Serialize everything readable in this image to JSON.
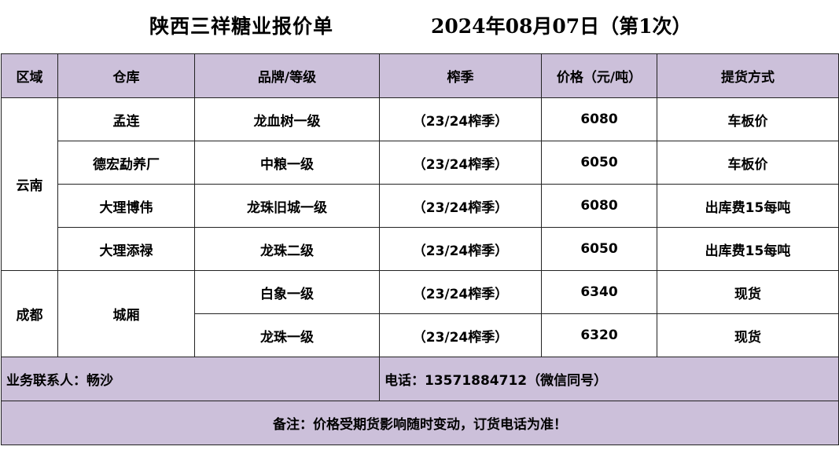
{
  "title": {
    "main": "陕西三祥糖业报价单",
    "date": "2024年08月07日（第1次）"
  },
  "headers": [
    "区域",
    "仓库",
    "品牌/等级",
    "榨季",
    "价格（元/吨）",
    "提货方式"
  ],
  "regions": {
    "yunnan": "云南",
    "chengdu": "成都"
  },
  "rows": [
    {
      "warehouse": "孟连",
      "brand": "龙血树一级",
      "season": "（23/24榨季）",
      "price": "6080",
      "delivery": "车板价"
    },
    {
      "warehouse": "德宏勐养厂",
      "brand": "中粮一级",
      "season": "（23/24榨季）",
      "price": "6050",
      "delivery": "车板价"
    },
    {
      "warehouse": "大理博伟",
      "brand": "龙珠旧城一级",
      "season": "（23/24榨季）",
      "price": "6080",
      "delivery": "出库费15每吨"
    },
    {
      "warehouse": "大理添禄",
      "brand": "龙珠二级",
      "season": "（23/24榨季）",
      "price": "6050",
      "delivery": "出库费15每吨"
    },
    {
      "warehouse": "城厢",
      "brand": "白象一级",
      "season": "（23/24榨季）",
      "price": "6340",
      "delivery": "现货"
    },
    {
      "warehouse": "",
      "brand": "龙珠一级",
      "season": "（23/24榨季）",
      "price": "6320",
      "delivery": "现货"
    }
  ],
  "contact": {
    "person": "业务联系人：畅沙",
    "phone": "电话：13571884712（微信同号）"
  },
  "note": "备注：价格受期货影响随时变动，订货电话为准！",
  "colors": {
    "header_bg": "#ccc0da",
    "border": "#222222"
  }
}
